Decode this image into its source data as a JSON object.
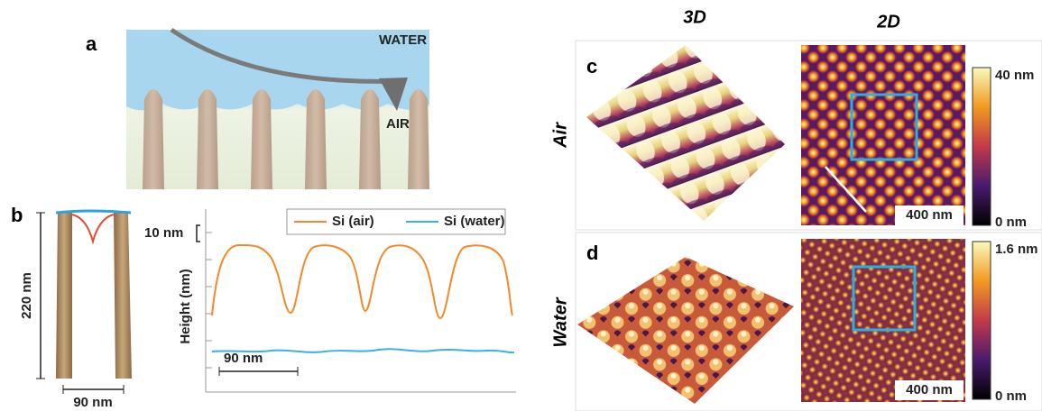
{
  "panel_a": {
    "label": "a",
    "water": "WATER",
    "air": "AIR"
  },
  "panel_b": {
    "label": "b",
    "pillar_height": "220 nm",
    "pillar_spacing": "90 nm",
    "height_scale": "10 nm",
    "y_axis_label": "Height (nm)",
    "legend": [
      "Si (air)",
      "Si (water)"
    ],
    "x_scale": "90 nm"
  },
  "columns": [
    "3D",
    "2D"
  ],
  "panel_c": {
    "label": "c",
    "row_label": "Air",
    "colorbar_max": "40 nm",
    "colorbar_min": "0 nm",
    "scale_bar": "400 nm"
  },
  "panel_d": {
    "label": "d",
    "row_label": "Water",
    "colorbar_max": "1.6 nm",
    "colorbar_min": "0 nm",
    "scale_bar": "400 nm"
  }
}
